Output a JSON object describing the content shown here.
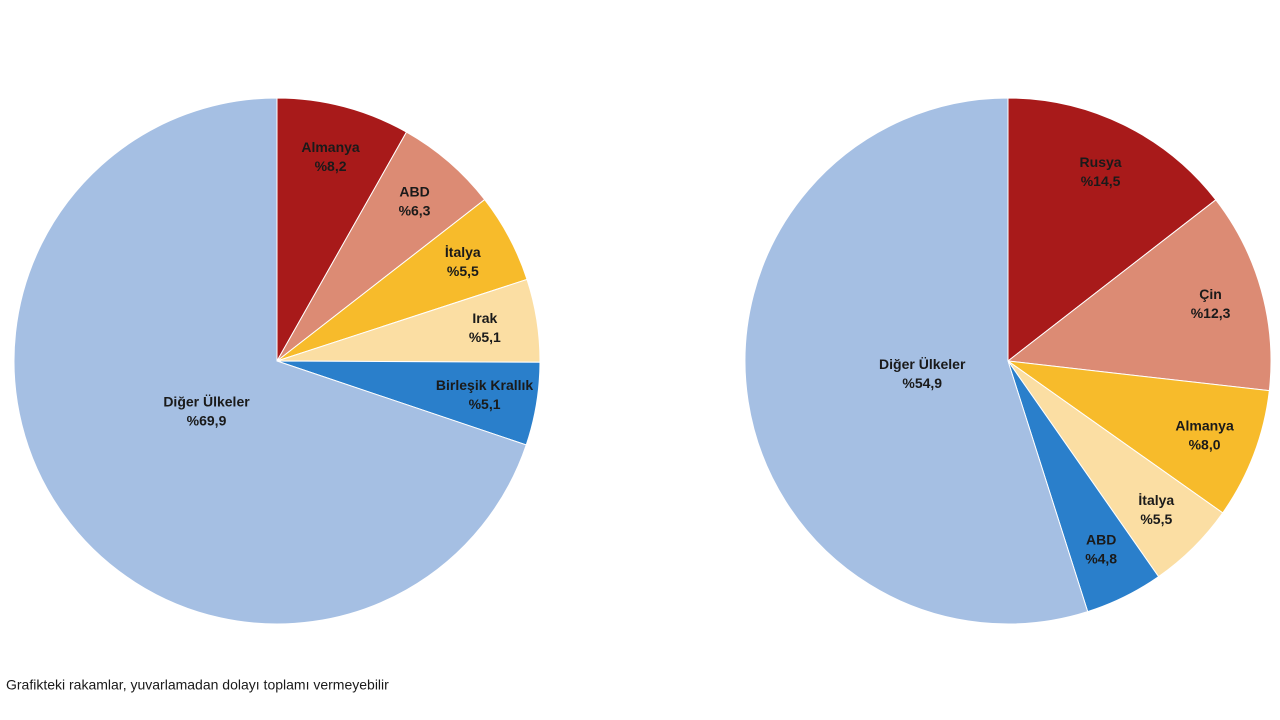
{
  "chart_data": [
    {
      "type": "pie",
      "categories": [
        "Almanya",
        "ABD",
        "İtalya",
        "Irak",
        "Birleşik Krallık",
        "Diğer Ülkeler"
      ],
      "values": [
        8.2,
        6.3,
        5.5,
        5.1,
        5.1,
        69.9
      ],
      "value_labels": [
        "%8,2",
        "%6,3",
        "%5,5",
        "%5,1",
        "%5,1",
        "%69,9"
      ],
      "colors": [
        "#a81a1a",
        "#dc8b74",
        "#f7bb2b",
        "#fbdea3",
        "#2a7fcb",
        "#a5bfe3"
      ]
    },
    {
      "type": "pie",
      "categories": [
        "Rusya",
        "Çin",
        "Almanya",
        "İtalya",
        "ABD",
        "Diğer Ülkeler"
      ],
      "values": [
        14.5,
        12.3,
        8.0,
        5.5,
        4.8,
        54.9
      ],
      "value_labels": [
        "%14,5",
        "%12,3",
        "%8,0",
        "%5,5",
        "%4,8",
        "%54,9"
      ],
      "colors": [
        "#a81a1a",
        "#dc8b74",
        "#f7bb2b",
        "#fbdea3",
        "#2a7fcb",
        "#a5bfe3"
      ]
    }
  ],
  "note": "Grafikteki rakamlar, yuvarlamadan dolayı toplamı vermeyebilir"
}
